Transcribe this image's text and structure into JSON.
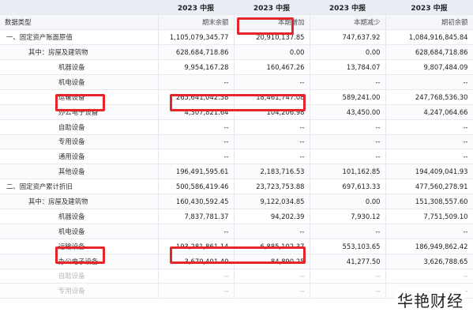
{
  "header": {
    "first": "",
    "periods": [
      "2023 中报",
      "2023 中报",
      "2023 中报",
      "2023 中报"
    ],
    "row_label": "数据类型",
    "subheads": [
      "期末余额",
      "本期增加",
      "本期减少",
      "期初余额"
    ]
  },
  "rows": [
    {
      "label": "一、固定资产账面原值",
      "level": 0,
      "values": [
        "1,105,079,345.77",
        "20,910,137.85",
        "747,637.92",
        "1,084,916,845.84"
      ]
    },
    {
      "label": "其中：房屋及建筑物",
      "level": 1,
      "values": [
        "628,684,718.86",
        "0.00",
        "0.00",
        "628,684,718.86"
      ]
    },
    {
      "label": "机器设备",
      "level": 2,
      "values": [
        "9,954,167.28",
        "160,467.26",
        "13,784.07",
        "9,807,484.09"
      ]
    },
    {
      "label": "机电设备",
      "level": 2,
      "values": [
        "--",
        "--",
        "--",
        "--"
      ]
    },
    {
      "label": "运输设备",
      "level": 2,
      "values": [
        "265,641,042.38",
        "18,461,747.08",
        "589,241.00",
        "247,768,536.30"
      ]
    },
    {
      "label": "办公电子设备",
      "level": 2,
      "values": [
        "4,307,821.64",
        "104,206.98",
        "43,450.00",
        "4,247,064.66"
      ]
    },
    {
      "label": "自助设备",
      "level": 2,
      "values": [
        "--",
        "--",
        "--",
        "--"
      ]
    },
    {
      "label": "专用设备",
      "level": 2,
      "values": [
        "--",
        "--",
        "--",
        "--"
      ]
    },
    {
      "label": "通用设备",
      "level": 2,
      "values": [
        "--",
        "--",
        "--",
        "--"
      ]
    },
    {
      "label": "其他设备",
      "level": 2,
      "values": [
        "196,491,595.61",
        "2,183,716.53",
        "101,162.85",
        "194,409,041.93"
      ]
    },
    {
      "label": "二、固定资产累计折旧",
      "level": 0,
      "values": [
        "500,586,419.46",
        "23,723,753.88",
        "697,613.33",
        "477,560,278.91"
      ]
    },
    {
      "label": "其中：房屋及建筑物",
      "level": 1,
      "values": [
        "160,430,592.45",
        "9,122,034.85",
        "0.00",
        "151,308,557.60"
      ]
    },
    {
      "label": "机器设备",
      "level": 2,
      "values": [
        "7,837,781.37",
        "94,202.39",
        "7,930.12",
        "7,751,509.10"
      ]
    },
    {
      "label": "机电设备",
      "level": 2,
      "values": [
        "--",
        "--",
        "--",
        "--"
      ]
    },
    {
      "label": "运输设备",
      "level": 2,
      "values": [
        "193,281,861.14",
        "6,885,102.37",
        "553,103.65",
        "186,949,862.42"
      ]
    },
    {
      "label": "办公电子设备",
      "level": 2,
      "values": [
        "3,670,401.40",
        "84,890.25",
        "41,277.50",
        "3,626,788.65"
      ]
    },
    {
      "label": "自助设备",
      "level": 2,
      "values": [
        "--",
        "--",
        "--",
        "--"
      ]
    },
    {
      "label": "专用设备",
      "level": 2,
      "values": [
        "--",
        "--",
        "--",
        "--"
      ]
    }
  ],
  "watermark": "华艳财经",
  "colors": {
    "highlight": "#e5252a",
    "header_bg": "#e9edf5"
  }
}
